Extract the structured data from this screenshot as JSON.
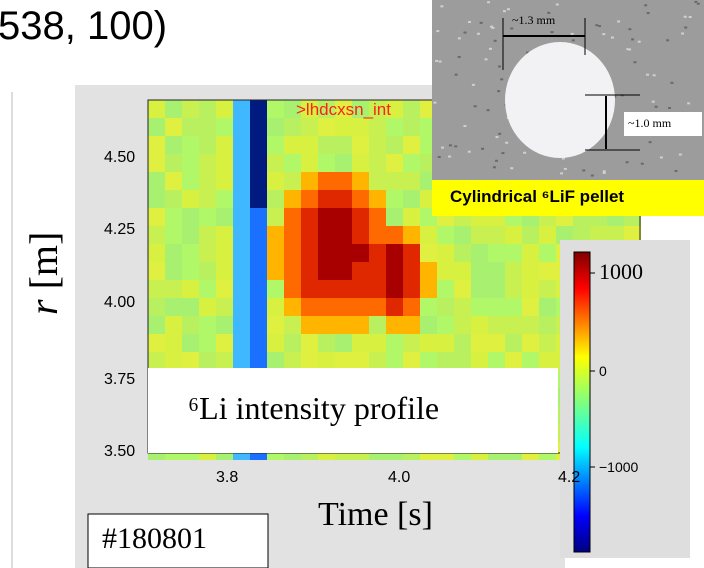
{
  "header_text": "538, 100)",
  "photo": {
    "width_label": "~1.3 mm",
    "height_label": "~1.0 mm",
    "caption": "Cylindrical ⁶LiF pellet"
  },
  "plot": {
    "tag": ">lhdcxsn_int",
    "y_label_var": "r",
    "y_label_unit": "[m]",
    "yticks": [
      "4.50",
      "4.25",
      "4.00",
      "3.75",
      "3.50"
    ],
    "xticks": [
      "3.8",
      "4.0",
      "4.2"
    ],
    "x_label": "Time [s]",
    "overlay": "⁶Li intensity profile",
    "colorbar_ticks": [
      "1000",
      "0",
      "−1000"
    ],
    "shot": "#180801"
  }
}
